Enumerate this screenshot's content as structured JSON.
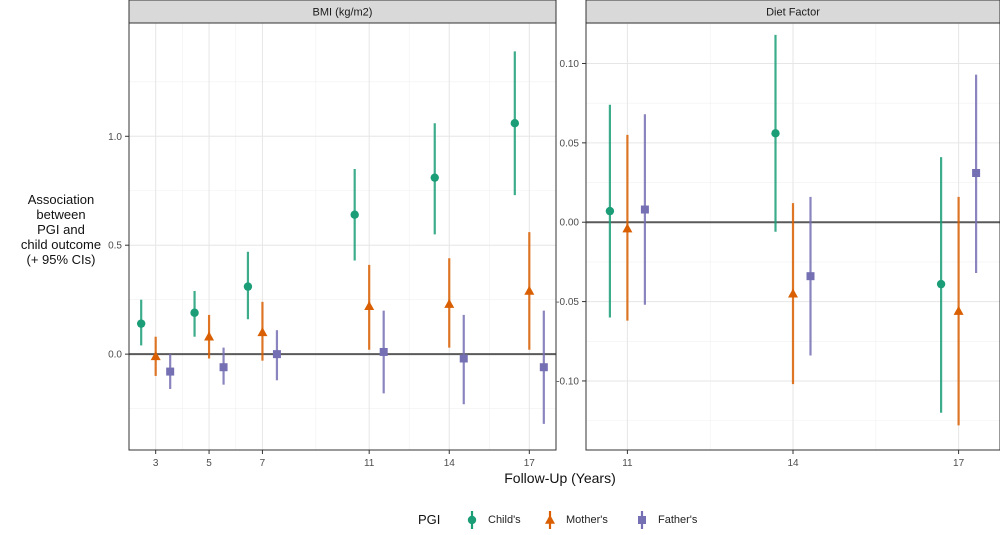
{
  "axis_labels": {
    "y": "Association\nbetween\nPGI and\nchild outcome\n(+ 95% CIs)",
    "x": "Follow-Up (Years)"
  },
  "legend": {
    "title": "PGI",
    "placement": "bottom",
    "items": [
      {
        "label": "Child's",
        "color": "#1b9e77",
        "shape": "circle"
      },
      {
        "label": "Mother's",
        "color": "#d95f02",
        "shape": "triangle"
      },
      {
        "label": "Father's",
        "color": "#7570b3",
        "shape": "square"
      }
    ]
  },
  "chart_data": [
    {
      "type": "scatter",
      "subtype": "pointrange",
      "panel_title": "BMI (kg/m2)",
      "xlabel": "Follow-Up (Years)",
      "ylabel": "Association between PGI and child outcome (+ 95% CIs)",
      "x_ticks": [
        3,
        5,
        7,
        11,
        14,
        17
      ],
      "y_ticks": [
        0.0,
        0.5,
        1.0
      ],
      "y_tick_labels": [
        "0.0",
        "0.5",
        "1.0"
      ],
      "xlim": [
        2.0,
        18.0
      ],
      "ylim": [
        -0.44,
        1.52
      ],
      "reference_line": 0,
      "grid": true,
      "series": [
        {
          "name": "Child's",
          "color": "#1b9e77",
          "shape": "circle",
          "points": [
            {
              "x": 3,
              "y": 0.14,
              "lo": 0.04,
              "hi": 0.25
            },
            {
              "x": 5,
              "y": 0.19,
              "lo": 0.08,
              "hi": 0.29
            },
            {
              "x": 7,
              "y": 0.31,
              "lo": 0.16,
              "hi": 0.47
            },
            {
              "x": 11,
              "y": 0.64,
              "lo": 0.43,
              "hi": 0.85
            },
            {
              "x": 14,
              "y": 0.81,
              "lo": 0.55,
              "hi": 1.06
            },
            {
              "x": 17,
              "y": 1.06,
              "lo": 0.73,
              "hi": 1.39
            }
          ]
        },
        {
          "name": "Mother's",
          "color": "#d95f02",
          "shape": "triangle",
          "points": [
            {
              "x": 3,
              "y": -0.01,
              "lo": -0.1,
              "hi": 0.08
            },
            {
              "x": 5,
              "y": 0.08,
              "lo": -0.02,
              "hi": 0.18
            },
            {
              "x": 7,
              "y": 0.1,
              "lo": -0.03,
              "hi": 0.24
            },
            {
              "x": 11,
              "y": 0.22,
              "lo": 0.02,
              "hi": 0.41
            },
            {
              "x": 14,
              "y": 0.23,
              "lo": 0.03,
              "hi": 0.44
            },
            {
              "x": 17,
              "y": 0.29,
              "lo": 0.02,
              "hi": 0.56
            }
          ]
        },
        {
          "name": "Father's",
          "color": "#7570b3",
          "shape": "square",
          "points": [
            {
              "x": 3,
              "y": -0.08,
              "lo": -0.16,
              "hi": 0.0
            },
            {
              "x": 5,
              "y": -0.06,
              "lo": -0.14,
              "hi": 0.03
            },
            {
              "x": 7,
              "y": 0.0,
              "lo": -0.12,
              "hi": 0.11
            },
            {
              "x": 11,
              "y": 0.01,
              "lo": -0.18,
              "hi": 0.2
            },
            {
              "x": 14,
              "y": -0.02,
              "lo": -0.23,
              "hi": 0.18
            },
            {
              "x": 17,
              "y": -0.06,
              "lo": -0.32,
              "hi": 0.2
            }
          ]
        }
      ]
    },
    {
      "type": "scatter",
      "subtype": "pointrange",
      "panel_title": "Diet Factor",
      "xlabel": "Follow-Up (Years)",
      "ylabel": "Association between PGI and child outcome (+ 95% CIs)",
      "x_ticks": [
        11,
        14,
        17
      ],
      "y_ticks": [
        -0.1,
        -0.05,
        0.0,
        0.05,
        0.1
      ],
      "y_tick_labels": [
        "-0.10",
        "-0.05",
        "0.00",
        "0.05",
        "0.10"
      ],
      "xlim": [
        10.25,
        17.75
      ],
      "ylim": [
        -0.1435,
        0.1255
      ],
      "reference_line": 0,
      "grid": true,
      "series": [
        {
          "name": "Child's",
          "color": "#1b9e77",
          "shape": "circle",
          "points": [
            {
              "x": 11,
              "y": 0.007,
              "lo": -0.06,
              "hi": 0.074
            },
            {
              "x": 14,
              "y": 0.056,
              "lo": -0.006,
              "hi": 0.118
            },
            {
              "x": 17,
              "y": -0.039,
              "lo": -0.12,
              "hi": 0.041
            }
          ]
        },
        {
          "name": "Mother's",
          "color": "#d95f02",
          "shape": "triangle",
          "points": [
            {
              "x": 11,
              "y": -0.004,
              "lo": -0.062,
              "hi": 0.055
            },
            {
              "x": 14,
              "y": -0.045,
              "lo": -0.102,
              "hi": 0.012
            },
            {
              "x": 17,
              "y": -0.056,
              "lo": -0.128,
              "hi": 0.016
            }
          ]
        },
        {
          "name": "Father's",
          "color": "#7570b3",
          "shape": "square",
          "points": [
            {
              "x": 11,
              "y": 0.008,
              "lo": -0.052,
              "hi": 0.068
            },
            {
              "x": 14,
              "y": -0.034,
              "lo": -0.084,
              "hi": 0.016
            },
            {
              "x": 17,
              "y": 0.031,
              "lo": -0.032,
              "hi": 0.093
            }
          ]
        }
      ]
    }
  ]
}
